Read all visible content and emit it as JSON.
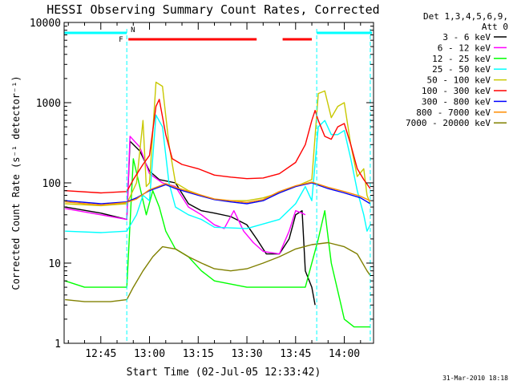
{
  "chart_data": {
    "type": "line",
    "title": "HESSI Observing Summary Count Rates, Corrected",
    "xlabel": "Start Time (02-Jul-05 12:33:42)",
    "ylabel": "Corrected Count Rate (s⁻¹ detector⁻¹)",
    "y_scale": "log",
    "ylim": [
      1,
      10000
    ],
    "xlim": [
      "12:33:42",
      "14:09:00"
    ],
    "x_ticks": [
      "12:45",
      "13:00",
      "13:15",
      "13:30",
      "13:45",
      "14:00"
    ],
    "y_ticks": [
      "1",
      "10",
      "100",
      "1000",
      "10000"
    ],
    "legend_header": [
      "Det 1,3,4,5,6,9,",
      "Att 0"
    ],
    "legend_position": "right",
    "footer_date": "31-Mar-2010 18:18",
    "flag_labels": {
      "flare": "F",
      "night": "N"
    },
    "flags": {
      "night": [
        [
          "12:33:42",
          "12:53:00"
        ],
        [
          "13:51:30",
          "14:09:00"
        ]
      ],
      "flare": [
        [
          "12:53:30",
          "13:33:00"
        ],
        [
          "13:41:00",
          "13:50:00"
        ]
      ]
    },
    "night_boundaries": [
      "12:53:00",
      "13:51:30",
      "14:08:00"
    ],
    "series": [
      {
        "name": "3 - 6 keV",
        "color": "#000000",
        "points": [
          [
            "12:34",
            50
          ],
          [
            "12:45",
            42
          ],
          [
            "12:53",
            35
          ],
          [
            "12:54",
            330
          ],
          [
            "12:57",
            250
          ],
          [
            "13:00",
            140
          ],
          [
            "13:03",
            110
          ],
          [
            "13:08",
            100
          ],
          [
            "13:12",
            55
          ],
          [
            "13:16",
            45
          ],
          [
            "13:20",
            42
          ],
          [
            "13:25",
            38
          ],
          [
            "13:30",
            30
          ],
          [
            "13:33",
            20
          ],
          [
            "13:36",
            13
          ],
          [
            "13:40",
            13
          ],
          [
            "13:43",
            20
          ],
          [
            "13:45",
            40
          ],
          [
            "13:47",
            45
          ],
          [
            "13:48",
            8
          ],
          [
            "13:50",
            5
          ],
          [
            "13:51",
            3
          ]
        ]
      },
      {
        "name": "6 - 12 keV",
        "color": "#ff00ff",
        "points": [
          [
            "12:34",
            48
          ],
          [
            "12:45",
            40
          ],
          [
            "12:53",
            35
          ],
          [
            "12:54",
            380
          ],
          [
            "12:57",
            280
          ],
          [
            "13:00",
            130
          ],
          [
            "13:04",
            100
          ],
          [
            "13:08",
            90
          ],
          [
            "13:12",
            50
          ],
          [
            "13:16",
            40
          ],
          [
            "13:20",
            30
          ],
          [
            "13:23",
            27
          ],
          [
            "13:26",
            45
          ],
          [
            "13:29",
            25
          ],
          [
            "13:32",
            18
          ],
          [
            "13:35",
            14
          ],
          [
            "13:40",
            13
          ],
          [
            "13:43",
            25
          ],
          [
            "13:45",
            45
          ],
          [
            "13:47",
            42
          ],
          [
            "13:48",
            40
          ]
        ]
      },
      {
        "name": "12 - 25 keV",
        "color": "#00ff00",
        "points": [
          [
            "12:34",
            6
          ],
          [
            "12:40",
            5
          ],
          [
            "12:50",
            5
          ],
          [
            "12:53",
            5
          ],
          [
            "12:55",
            200
          ],
          [
            "12:57",
            90
          ],
          [
            "12:59",
            40
          ],
          [
            "13:01",
            80
          ],
          [
            "13:03",
            50
          ],
          [
            "13:05",
            25
          ],
          [
            "13:08",
            15
          ],
          [
            "13:12",
            12
          ],
          [
            "13:16",
            8
          ],
          [
            "13:20",
            6
          ],
          [
            "13:30",
            5
          ],
          [
            "13:40",
            5
          ],
          [
            "13:48",
            5
          ],
          [
            "13:52",
            20
          ],
          [
            "13:54",
            45
          ],
          [
            "13:56",
            10
          ],
          [
            "13:59",
            3
          ],
          [
            "14:00",
            2
          ],
          [
            "14:03",
            1.6
          ],
          [
            "14:07",
            1.6
          ],
          [
            "14:08",
            1.6
          ]
        ]
      },
      {
        "name": "25 - 50 keV",
        "color": "#00ffff",
        "points": [
          [
            "12:34",
            25
          ],
          [
            "12:45",
            24
          ],
          [
            "12:53",
            25
          ],
          [
            "12:56",
            40
          ],
          [
            "12:58",
            70
          ],
          [
            "13:00",
            60
          ],
          [
            "13:02",
            700
          ],
          [
            "13:04",
            500
          ],
          [
            "13:06",
            100
          ],
          [
            "13:08",
            50
          ],
          [
            "13:12",
            40
          ],
          [
            "13:16",
            35
          ],
          [
            "13:20",
            28
          ],
          [
            "13:30",
            27
          ],
          [
            "13:40",
            35
          ],
          [
            "13:45",
            55
          ],
          [
            "13:48",
            90
          ],
          [
            "13:50",
            60
          ],
          [
            "13:52",
            500
          ],
          [
            "13:54",
            600
          ],
          [
            "13:56",
            400
          ],
          [
            "13:58",
            400
          ],
          [
            "14:00",
            450
          ],
          [
            "14:02",
            200
          ],
          [
            "14:04",
            80
          ],
          [
            "14:06",
            40
          ],
          [
            "14:07",
            25
          ],
          [
            "14:08",
            30
          ]
        ]
      },
      {
        "name": "50 - 100 keV",
        "color": "#c8c800",
        "points": [
          [
            "12:34",
            55
          ],
          [
            "12:45",
            52
          ],
          [
            "12:53",
            55
          ],
          [
            "12:56",
            100
          ],
          [
            "12:58",
            600
          ],
          [
            "12:59",
            90
          ],
          [
            "13:00",
            100
          ],
          [
            "13:02",
            1800
          ],
          [
            "13:04",
            1600
          ],
          [
            "13:06",
            300
          ],
          [
            "13:08",
            100
          ],
          [
            "13:12",
            80
          ],
          [
            "13:16",
            70
          ],
          [
            "13:20",
            62
          ],
          [
            "13:25",
            60
          ],
          [
            "13:30",
            60
          ],
          [
            "13:35",
            65
          ],
          [
            "13:40",
            75
          ],
          [
            "13:45",
            90
          ],
          [
            "13:50",
            110
          ],
          [
            "13:52",
            1300
          ],
          [
            "13:54",
            1400
          ],
          [
            "13:56",
            650
          ],
          [
            "13:58",
            900
          ],
          [
            "14:00",
            1000
          ],
          [
            "14:02",
            300
          ],
          [
            "14:04",
            120
          ],
          [
            "14:06",
            150
          ],
          [
            "14:07",
            70
          ],
          [
            "14:08",
            55
          ]
        ]
      },
      {
        "name": "100 - 300 keV",
        "color": "#ff0000",
        "points": [
          [
            "12:34",
            80
          ],
          [
            "12:45",
            75
          ],
          [
            "12:53",
            78
          ],
          [
            "12:55",
            110
          ],
          [
            "12:58",
            170
          ],
          [
            "13:00",
            220
          ],
          [
            "13:02",
            900
          ],
          [
            "13:03",
            1100
          ],
          [
            "13:05",
            400
          ],
          [
            "13:07",
            200
          ],
          [
            "13:10",
            170
          ],
          [
            "13:15",
            150
          ],
          [
            "13:20",
            125
          ],
          [
            "13:25",
            118
          ],
          [
            "13:30",
            113
          ],
          [
            "13:35",
            115
          ],
          [
            "13:40",
            130
          ],
          [
            "13:45",
            180
          ],
          [
            "13:48",
            300
          ],
          [
            "13:50",
            600
          ],
          [
            "13:51",
            800
          ],
          [
            "13:52",
            600
          ],
          [
            "13:54",
            380
          ],
          [
            "13:56",
            350
          ],
          [
            "13:58",
            500
          ],
          [
            "14:00",
            550
          ],
          [
            "14:02",
            300
          ],
          [
            "14:04",
            150
          ],
          [
            "14:06",
            110
          ],
          [
            "14:08",
            85
          ]
        ]
      },
      {
        "name": "300 - 800 keV",
        "color": "#0000ff",
        "points": [
          [
            "12:34",
            60
          ],
          [
            "12:45",
            55
          ],
          [
            "12:53",
            58
          ],
          [
            "12:56",
            65
          ],
          [
            "13:00",
            80
          ],
          [
            "13:05",
            95
          ],
          [
            "13:08",
            85
          ],
          [
            "13:15",
            70
          ],
          [
            "13:20",
            62
          ],
          [
            "13:25",
            58
          ],
          [
            "13:30",
            55
          ],
          [
            "13:35",
            60
          ],
          [
            "13:40",
            75
          ],
          [
            "13:45",
            90
          ],
          [
            "13:50",
            100
          ],
          [
            "13:55",
            85
          ],
          [
            "14:00",
            75
          ],
          [
            "14:05",
            65
          ],
          [
            "14:08",
            55
          ]
        ]
      },
      {
        "name": "800 - 7000 keV",
        "color": "#ff8c00",
        "points": [
          [
            "12:34",
            58
          ],
          [
            "12:45",
            53
          ],
          [
            "12:53",
            57
          ],
          [
            "12:56",
            63
          ],
          [
            "13:00",
            82
          ],
          [
            "13:05",
            98
          ],
          [
            "13:08",
            88
          ],
          [
            "13:15",
            72
          ],
          [
            "13:20",
            63
          ],
          [
            "13:25",
            60
          ],
          [
            "13:30",
            57
          ],
          [
            "13:35",
            62
          ],
          [
            "13:40",
            78
          ],
          [
            "13:45",
            92
          ],
          [
            "13:50",
            102
          ],
          [
            "13:55",
            88
          ],
          [
            "14:00",
            78
          ],
          [
            "14:05",
            68
          ],
          [
            "14:08",
            60
          ]
        ]
      },
      {
        "name": "7000 - 20000 keV",
        "color": "#808000",
        "points": [
          [
            "12:34",
            3.5
          ],
          [
            "12:40",
            3.3
          ],
          [
            "12:48",
            3.3
          ],
          [
            "12:53",
            3.5
          ],
          [
            "12:55",
            5
          ],
          [
            "12:58",
            8
          ],
          [
            "13:01",
            12
          ],
          [
            "13:04",
            16
          ],
          [
            "13:08",
            15
          ],
          [
            "13:12",
            12
          ],
          [
            "13:16",
            10
          ],
          [
            "13:20",
            8.5
          ],
          [
            "13:25",
            8
          ],
          [
            "13:30",
            8.5
          ],
          [
            "13:35",
            10
          ],
          [
            "13:40",
            12
          ],
          [
            "13:45",
            15
          ],
          [
            "13:50",
            17
          ],
          [
            "13:55",
            18
          ],
          [
            "14:00",
            16
          ],
          [
            "14:04",
            13
          ],
          [
            "14:07",
            8
          ],
          [
            "14:08",
            7
          ]
        ]
      }
    ]
  }
}
